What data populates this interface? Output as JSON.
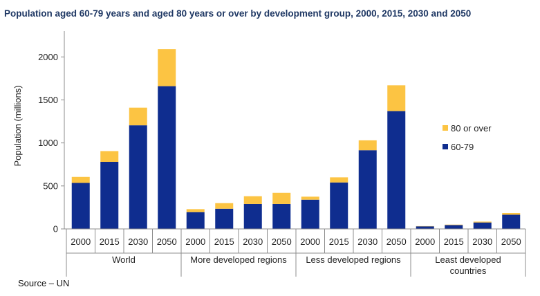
{
  "chart_data": {
    "type": "bar",
    "stacked": true,
    "title": "Population aged 60-79 years and aged 80 years or over by development group, 2000, 2015, 2030 and 2050",
    "ylabel": "Population (millions)",
    "xlabel": "",
    "ylim": [
      0,
      2300
    ],
    "yticks": [
      0,
      500,
      1000,
      1500,
      2000
    ],
    "grid": false,
    "legend_position": "right",
    "groups": [
      {
        "label": "World",
        "categories": [
          "2000",
          "2015",
          "2030",
          "2050"
        ]
      },
      {
        "label": "More developed regions",
        "categories": [
          "2000",
          "2015",
          "2030",
          "2050"
        ]
      },
      {
        "label": "Less developed regions",
        "categories": [
          "2000",
          "2015",
          "2030",
          "2050"
        ]
      },
      {
        "label": "Least developed countries",
        "categories": [
          "2000",
          "2015",
          "2030",
          "2050"
        ]
      }
    ],
    "series": [
      {
        "name": "60-79",
        "color": "#0f2d8f",
        "values": [
          535,
          780,
          1205,
          1660,
          195,
          235,
          290,
          290,
          340,
          540,
          915,
          1370,
          30,
          45,
          75,
          165
        ]
      },
      {
        "name": "80 or over",
        "color": "#fcc443",
        "values": [
          70,
          125,
          205,
          430,
          35,
          65,
          90,
          130,
          35,
          60,
          115,
          300,
          3,
          5,
          10,
          20
        ]
      }
    ]
  },
  "source": "Source – UN"
}
